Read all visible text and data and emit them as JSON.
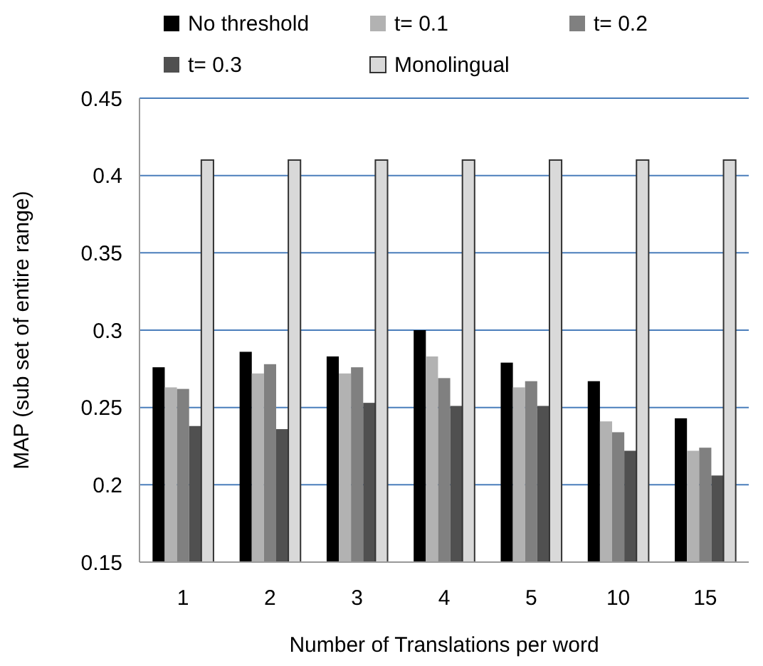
{
  "chart_data": {
    "type": "bar",
    "xlabel": "Number of Translations per word",
    "ylabel": "MAP (sub set of entire range)",
    "categories": [
      "1",
      "2",
      "3",
      "4",
      "5",
      "10",
      "15"
    ],
    "ylim": [
      0.15,
      0.45
    ],
    "yticks": [
      {
        "value": 0.15,
        "label": "0.15"
      },
      {
        "value": 0.2,
        "label": "0.2"
      },
      {
        "value": 0.25,
        "label": "0.25"
      },
      {
        "value": 0.3,
        "label": "0.3"
      },
      {
        "value": 0.35,
        "label": "0.35"
      },
      {
        "value": 0.4,
        "label": "0.4"
      },
      {
        "value": 0.45,
        "label": "0.45"
      }
    ],
    "grid": "y",
    "legend": "top",
    "series": [
      {
        "name": "No threshold",
        "color": "#000000",
        "values": [
          0.276,
          0.286,
          0.283,
          0.3,
          0.279,
          0.267,
          0.243
        ]
      },
      {
        "name": "t= 0.1",
        "color": "#b2b2b2",
        "values": [
          0.263,
          0.272,
          0.272,
          0.283,
          0.263,
          0.241,
          0.222
        ]
      },
      {
        "name": "t= 0.2",
        "color": "#808080",
        "values": [
          0.262,
          0.278,
          0.276,
          0.269,
          0.267,
          0.234,
          0.224
        ]
      },
      {
        "name": "t= 0.3",
        "color": "#505050",
        "values": [
          0.238,
          0.236,
          0.253,
          0.251,
          0.251,
          0.222,
          0.206
        ]
      },
      {
        "name": "Monolingual",
        "color": "#d9d9d9",
        "values": [
          0.41,
          0.41,
          0.41,
          0.41,
          0.41,
          0.41,
          0.41
        ]
      }
    ]
  }
}
